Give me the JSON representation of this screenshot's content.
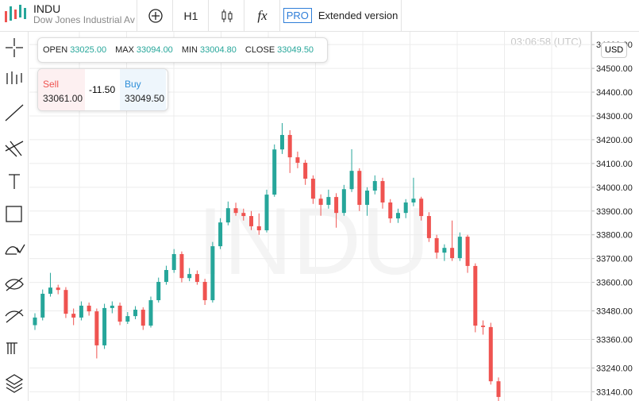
{
  "header": {
    "symbol": "INDU",
    "name": "Dow Jones Industrial Ave",
    "timeframe": "H1",
    "indicators": "fx",
    "pro": "PRO",
    "extended": "Extended version"
  },
  "ohlc_panel": {
    "items": [
      {
        "label": "OPEN",
        "value": "33025.00"
      },
      {
        "label": "MAX",
        "value": "33094.00"
      },
      {
        "label": "MIN",
        "value": "33004.80"
      },
      {
        "label": "CLOSE",
        "value": "33049.50"
      }
    ]
  },
  "trade_panel": {
    "sell_label": "Sell",
    "sell_price": "33061.00",
    "spread": "-11.50",
    "buy_label": "Buy",
    "buy_price": "33049.50"
  },
  "chart_data": {
    "type": "candlestick",
    "watermark": "INDU",
    "time": "03:06:58 (UTC)",
    "currency": "USD",
    "up_color": "#26a69a",
    "down_color": "#ef5350",
    "grid": true,
    "ylim": [
      33101,
      34654
    ],
    "yticks": [
      {
        "value": 34600,
        "label": "34600.00"
      },
      {
        "value": 34500,
        "label": "34500.00"
      },
      {
        "value": 34400,
        "label": "34400.00"
      },
      {
        "value": 34300,
        "label": "34300.00"
      },
      {
        "value": 34200,
        "label": "34200.00"
      },
      {
        "value": 34100,
        "label": "34100.00"
      },
      {
        "value": 34000,
        "label": "34000.00"
      },
      {
        "value": 33900,
        "label": "33900.00"
      },
      {
        "value": 33800,
        "label": "33800.00"
      },
      {
        "value": 33700,
        "label": "33700.00"
      },
      {
        "value": 33600,
        "label": "33600.00"
      },
      {
        "value": 33480,
        "label": "33480.00"
      },
      {
        "value": 33360,
        "label": "33360.00"
      },
      {
        "value": 33240,
        "label": "33240.00"
      },
      {
        "value": 33140,
        "label": "33140.00"
      }
    ],
    "ohlc": [
      [
        33420,
        33470,
        33400,
        33452
      ],
      [
        33452,
        33570,
        33440,
        33552
      ],
      [
        33552,
        33640,
        33540,
        33578
      ],
      [
        33578,
        33590,
        33550,
        33568
      ],
      [
        33568,
        33580,
        33450,
        33468
      ],
      [
        33468,
        33490,
        33420,
        33452
      ],
      [
        33452,
        33520,
        33440,
        33502
      ],
      [
        33502,
        33515,
        33460,
        33478
      ],
      [
        33478,
        33490,
        33280,
        33335
      ],
      [
        33335,
        33510,
        33320,
        33492
      ],
      [
        33492,
        33520,
        33470,
        33502
      ],
      [
        33502,
        33515,
        33420,
        33435
      ],
      [
        33435,
        33475,
        33425,
        33458
      ],
      [
        33458,
        33500,
        33445,
        33485
      ],
      [
        33485,
        33495,
        33400,
        33418
      ],
      [
        33418,
        33540,
        33410,
        33525
      ],
      [
        33525,
        33620,
        33515,
        33602
      ],
      [
        33602,
        33670,
        33590,
        33652
      ],
      [
        33652,
        33740,
        33640,
        33719
      ],
      [
        33719,
        33730,
        33600,
        33618
      ],
      [
        33618,
        33660,
        33605,
        33635
      ],
      [
        33635,
        33650,
        33590,
        33602
      ],
      [
        33602,
        33615,
        33505,
        33525
      ],
      [
        33525,
        33770,
        33515,
        33752
      ],
      [
        33752,
        33870,
        33740,
        33852
      ],
      [
        33852,
        33940,
        33840,
        33912
      ],
      [
        33912,
        33935,
        33880,
        33892
      ],
      [
        33892,
        33910,
        33860,
        33879
      ],
      [
        33879,
        33900,
        33820,
        33836
      ],
      [
        33836,
        33890,
        33800,
        33819
      ],
      [
        33819,
        33990,
        33810,
        33969
      ],
      [
        33969,
        34180,
        33960,
        34159
      ],
      [
        34159,
        34270,
        34140,
        34220
      ],
      [
        34220,
        34240,
        34060,
        34126
      ],
      [
        34126,
        34150,
        34080,
        34103
      ],
      [
        34103,
        34115,
        34010,
        34036
      ],
      [
        34036,
        34050,
        33930,
        33952
      ],
      [
        33952,
        33970,
        33880,
        33926
      ],
      [
        33926,
        33990,
        33910,
        33959
      ],
      [
        33959,
        33975,
        33830,
        33892
      ],
      [
        33892,
        34010,
        33880,
        33992
      ],
      [
        33992,
        34160,
        33980,
        34069
      ],
      [
        34069,
        34080,
        33900,
        33926
      ],
      [
        33926,
        34000,
        33880,
        33986
      ],
      [
        33986,
        34050,
        33970,
        34026
      ],
      [
        34026,
        34040,
        33910,
        33936
      ],
      [
        33936,
        33950,
        33850,
        33869
      ],
      [
        33869,
        33910,
        33850,
        33892
      ],
      [
        33892,
        33950,
        33870,
        33936
      ],
      [
        33936,
        34040,
        33920,
        33952
      ],
      [
        33952,
        33960,
        33860,
        33879
      ],
      [
        33879,
        33895,
        33770,
        33786
      ],
      [
        33786,
        33800,
        33700,
        33725
      ],
      [
        33725,
        33760,
        33690,
        33745
      ],
      [
        33745,
        33860,
        33690,
        33702
      ],
      [
        33702,
        33810,
        33690,
        33792
      ],
      [
        33792,
        33800,
        33640,
        33669
      ],
      [
        33669,
        33680,
        33390,
        33418
      ],
      [
        33418,
        33440,
        33380,
        33412
      ],
      [
        33412,
        33430,
        33170,
        33184
      ],
      [
        33184,
        33200,
        33090,
        33118
      ]
    ]
  }
}
